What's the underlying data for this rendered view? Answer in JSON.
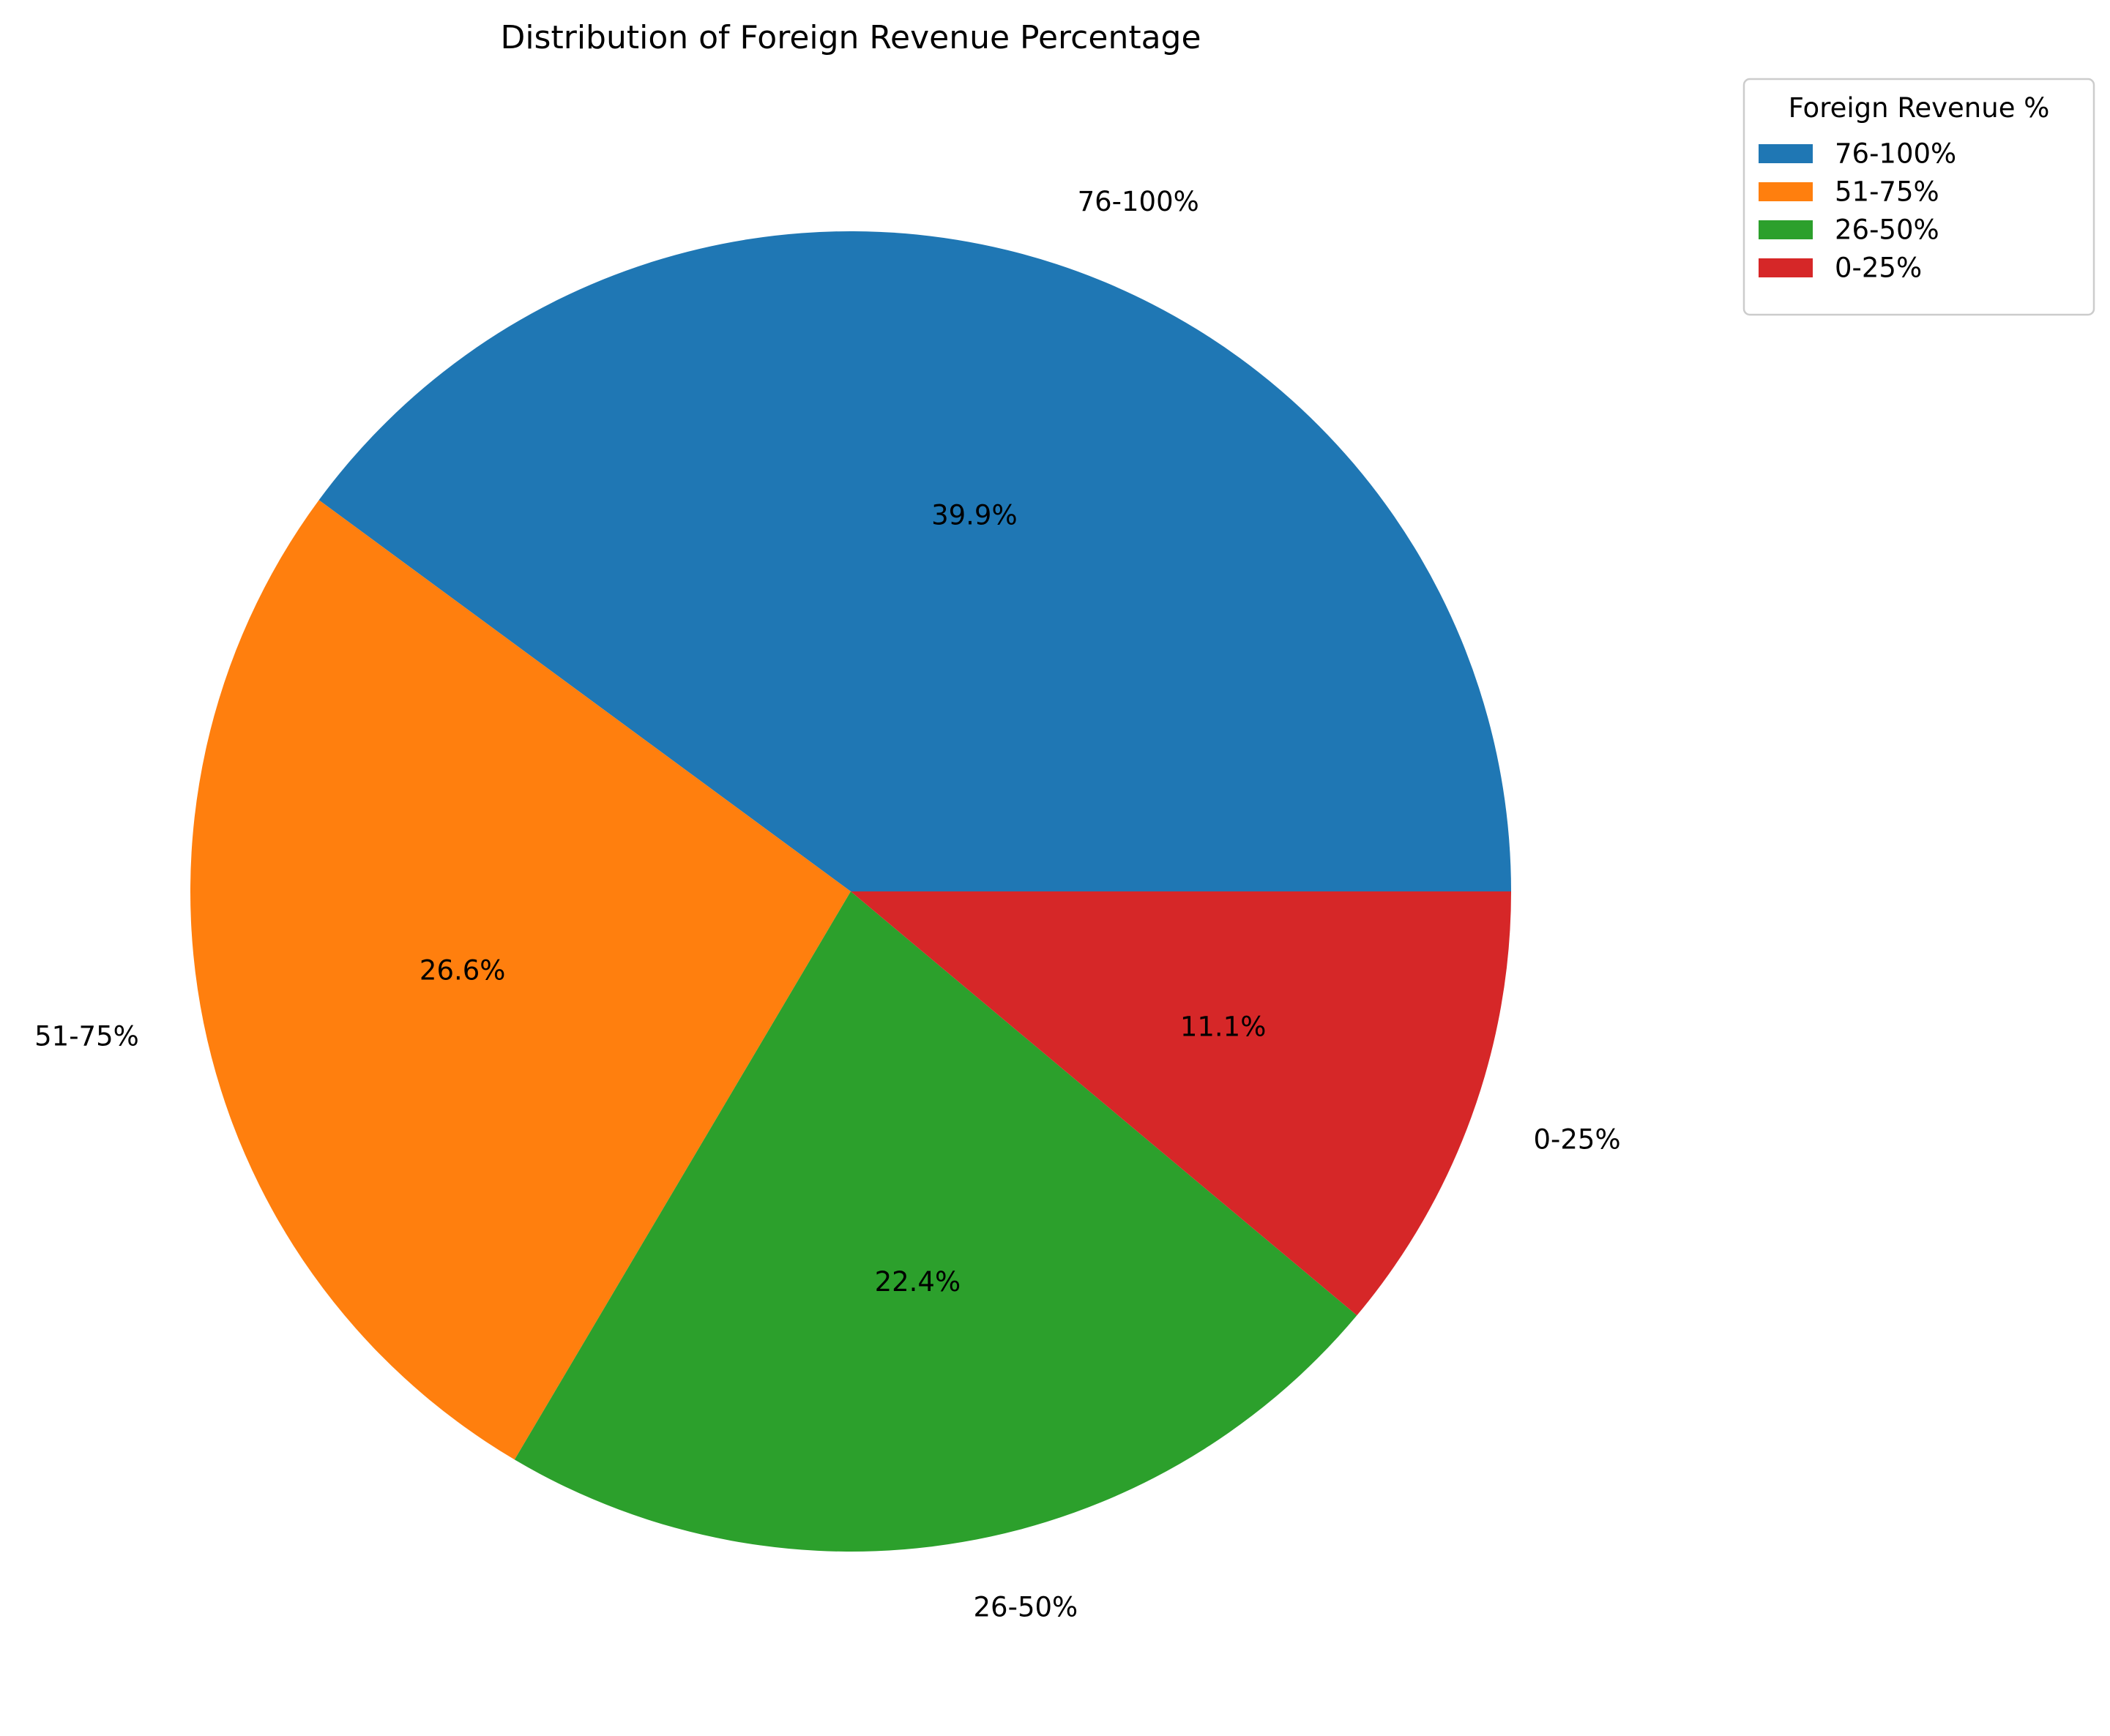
{
  "chart_data": {
    "type": "pie",
    "title": "Distribution of Foreign Revenue Percentage",
    "categories": [
      "76-100%",
      "51-75%",
      "26-50%",
      "0-25%"
    ],
    "values": [
      39.9,
      26.6,
      22.4,
      11.1
    ],
    "value_labels": [
      "39.9%",
      "26.6%",
      "22.4%",
      "11.1%"
    ],
    "colors": [
      "#1f77b4",
      "#ff7f0e",
      "#2ca02c",
      "#d62728"
    ],
    "start_angle_deg": 0,
    "direction": "counterclockwise",
    "legend": {
      "title": "Foreign Revenue %",
      "placement": "top-right outside",
      "entries": [
        "76-100%",
        "51-75%",
        "26-50%",
        "0-25%"
      ]
    }
  }
}
